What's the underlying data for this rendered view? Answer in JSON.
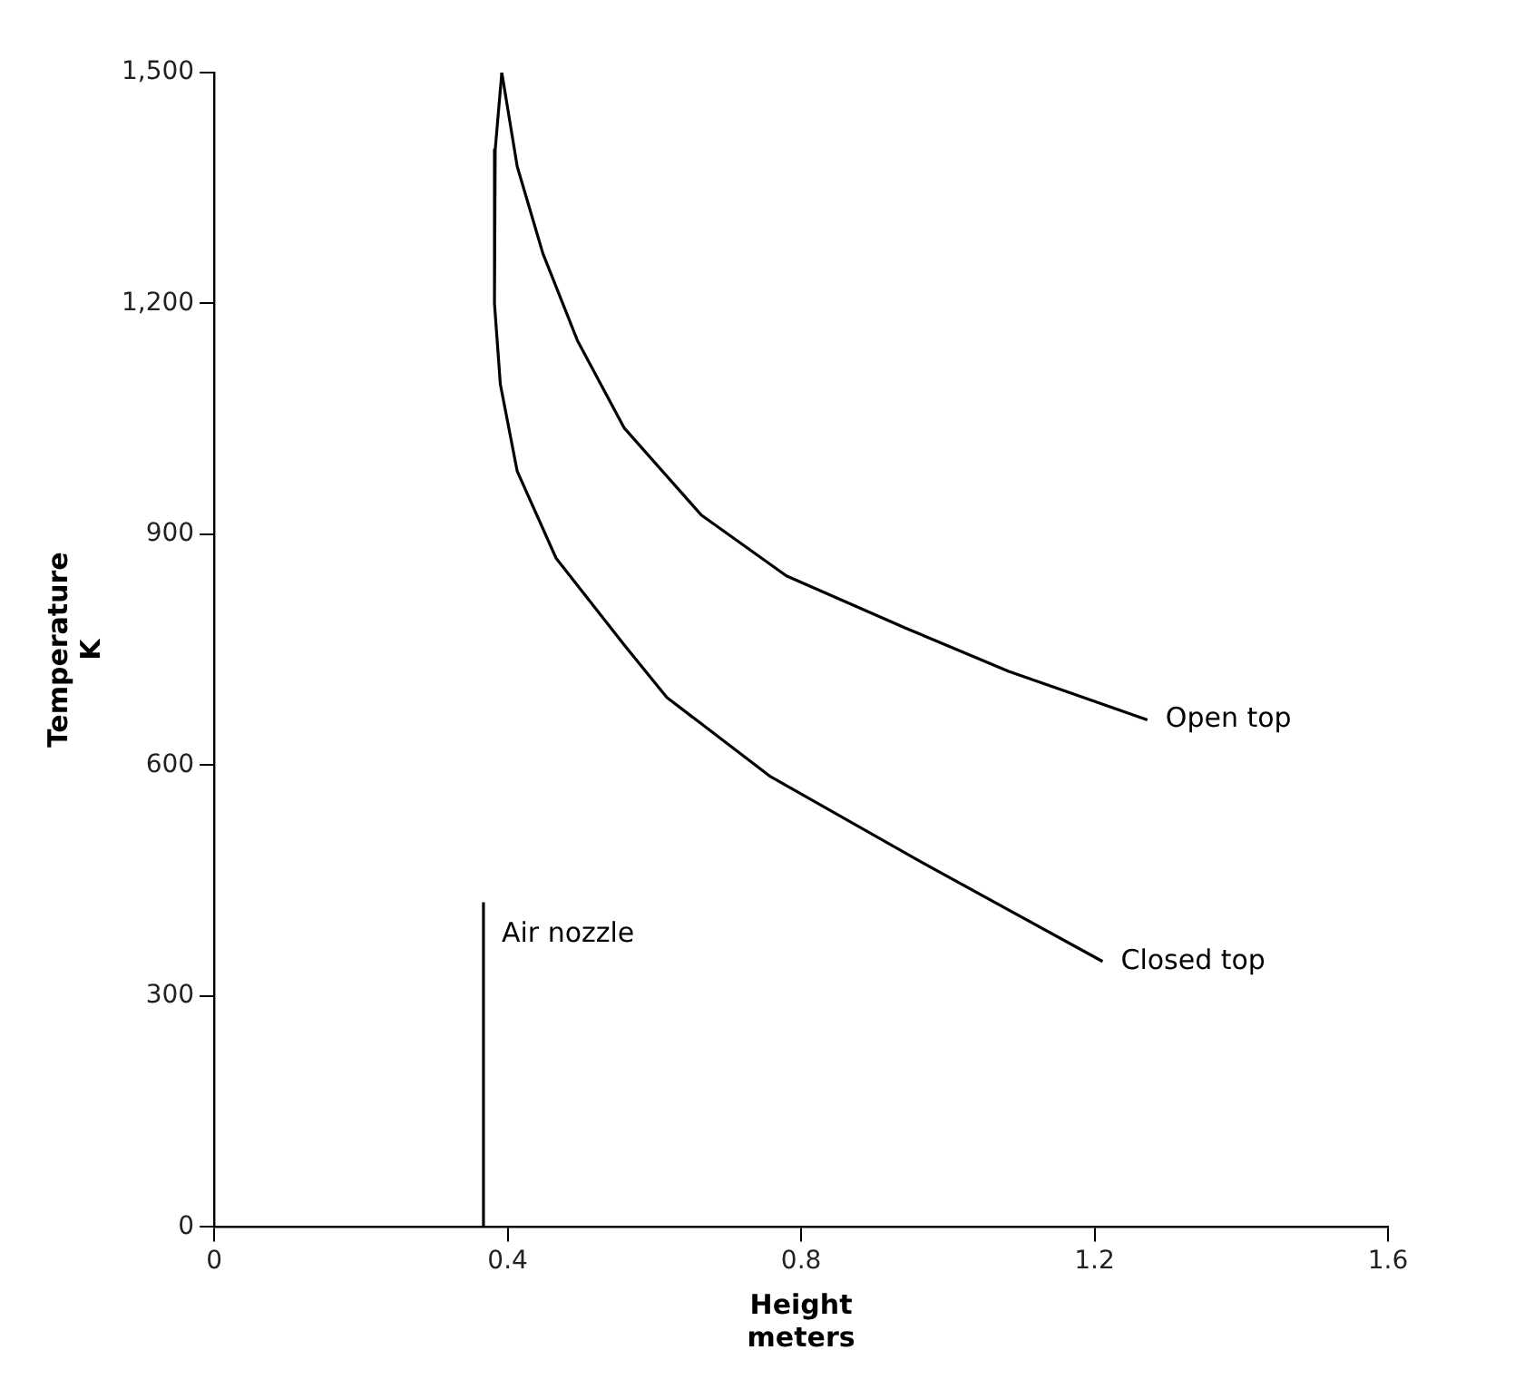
{
  "chart_data": {
    "type": "line",
    "xlabel": "Height\nmeters",
    "ylabel": "Temperature\nK",
    "xlim": [
      0,
      1.6
    ],
    "xticks": [
      0,
      0.4,
      0.8,
      1.2,
      1.6
    ],
    "ylim": [
      0,
      1500
    ],
    "yticks": [
      0,
      300,
      600,
      900,
      {
        "value": 1200,
        "label": "1,200"
      },
      {
        "value": 1500,
        "label": "1,500"
      }
    ],
    "grid": false,
    "legend": false,
    "marker": "none",
    "line_style": "solid",
    "series": [
      {
        "name": "Open top",
        "color": "#000000",
        "x": [
          0.392,
          0.413,
          0.448,
          0.495,
          0.559,
          0.664,
          0.78,
          0.943,
          1.083,
          1.272
        ],
        "values": [
          1500,
          1378,
          1265,
          1152,
          1038,
          925,
          846,
          778,
          722,
          659
        ]
      },
      {
        "name": "Closed top",
        "color": "#000000",
        "x": [
          0.392,
          0.383,
          0.382,
          0.39,
          0.413,
          0.466,
          0.559,
          0.617,
          0.757,
          0.966,
          1.211
        ],
        "values": [
          1500,
          1400,
          1200,
          1095,
          982,
          869,
          756,
          688,
          586,
          473,
          345
        ]
      },
      {
        "color": "#000000",
        "x": [
          0.367,
          0.367
        ],
        "values": [
          0,
          422
        ]
      }
    ],
    "annotations": [
      {
        "text": "Air nozzle",
        "x": 0.367,
        "y": 380
      }
    ]
  }
}
